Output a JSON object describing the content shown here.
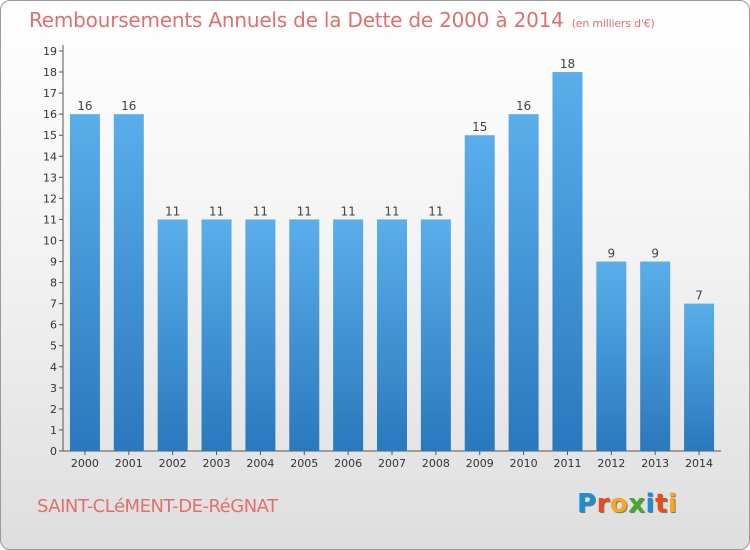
{
  "header": {
    "title": "Remboursements Annuels de la Dette de 2000 à 2014",
    "unit": "(en milliers d'€)"
  },
  "footer": {
    "commune": "SAINT-CLéMENT-DE-RéGNAT",
    "logo": {
      "letters": [
        "P",
        "r",
        "o",
        "x",
        "i",
        "t",
        "i"
      ],
      "colors": [
        "#1a8fd6",
        "#e84c1c",
        "#f7a823",
        "#4aa82c",
        "#1a8fd6",
        "#e84c1c",
        "#f7a823"
      ]
    }
  },
  "colors": {
    "title": "#e0706e",
    "bar_top": "#5aaeea",
    "bar_bottom": "#2a78bd"
  },
  "chart_data": {
    "type": "bar",
    "categories": [
      "2000",
      "2001",
      "2002",
      "2003",
      "2004",
      "2005",
      "2006",
      "2007",
      "2008",
      "2009",
      "2010",
      "2011",
      "2012",
      "2013",
      "2014"
    ],
    "values": [
      16,
      16,
      11,
      11,
      11,
      11,
      11,
      11,
      11,
      15,
      16,
      18,
      9,
      9,
      7
    ],
    "ylim": [
      0,
      19
    ],
    "yticks": [
      0,
      1,
      2,
      3,
      4,
      5,
      6,
      7,
      8,
      9,
      10,
      11,
      12,
      13,
      14,
      15,
      16,
      17,
      18,
      19
    ],
    "grid": false,
    "legend": "none"
  }
}
